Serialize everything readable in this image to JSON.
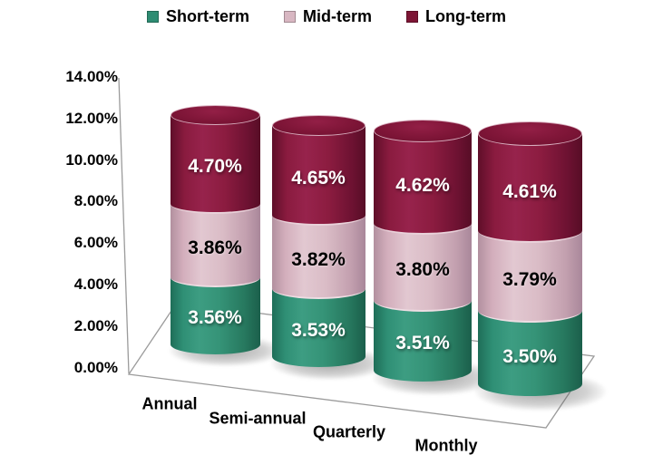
{
  "legend": [
    {
      "label": "Short-term",
      "color": "#2E8C72"
    },
    {
      "label": "Mid-term",
      "color": "#D8B7C2"
    },
    {
      "label": "Long-term",
      "color": "#7D1535"
    }
  ],
  "chart_data": {
    "type": "bar",
    "subtype": "3d-stacked-cylinder",
    "title": "",
    "categories": [
      "Annual",
      "Semi-annual",
      "Quarterly",
      "Monthly"
    ],
    "series": [
      {
        "name": "Short-term",
        "color": "#2E8C72",
        "label_style": "light",
        "values": [
          3.56,
          3.53,
          3.51,
          3.5
        ],
        "labels": [
          "3.56%",
          "3.53%",
          "3.51%",
          "3.50%"
        ]
      },
      {
        "name": "Mid-term",
        "color": "#D8B7C2",
        "label_style": "dark",
        "values": [
          3.86,
          3.82,
          3.8,
          3.79
        ],
        "labels": [
          "3.86%",
          "3.82%",
          "3.80%",
          "3.79%"
        ]
      },
      {
        "name": "Long-term",
        "color": "#8C1C40",
        "label_style": "light",
        "values": [
          4.7,
          4.65,
          4.62,
          4.61
        ],
        "labels": [
          "4.70%",
          "4.65%",
          "4.62%",
          "4.61%"
        ]
      }
    ],
    "totals": [
      12.12,
      12.0,
      11.93,
      11.9
    ],
    "ylim": [
      0,
      14
    ],
    "y_ticks": [
      "14.00%",
      "12.00%",
      "10.00%",
      "8.00%",
      "6.00%",
      "4.00%",
      "2.00%",
      "0.00%"
    ],
    "legend_position": "top",
    "grid": false,
    "axis_line_color": "#9b9b9b"
  }
}
